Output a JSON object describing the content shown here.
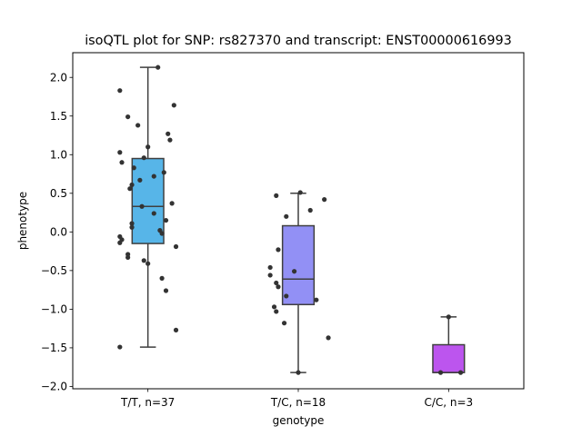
{
  "chart_data": {
    "type": "box",
    "title": "isoQTL plot for SNP: rs827370 and transcript: ENST00000616993",
    "xlabel": "genotype",
    "ylabel": "phenotype",
    "ylim": [
      -2.03,
      2.32
    ],
    "yticks": [
      2.0,
      1.5,
      1.0,
      0.5,
      0.0,
      -0.5,
      -1.0,
      -1.5,
      -2.0
    ],
    "ytick_labels": [
      "2.0",
      "1.5",
      "1.0",
      "0.5",
      "0.0",
      "−0.5",
      "−1.0",
      "−1.5",
      "−2.0"
    ],
    "categories": [
      "T/T, n=37",
      "T/C, n=18",
      "C/C, n=3"
    ],
    "colors": [
      "#57b5e8",
      "#9290f5",
      "#bc55ee"
    ],
    "boxes": [
      {
        "whisker_low": -1.49,
        "q1": -0.15,
        "median": 0.33,
        "q3": 0.95,
        "whisker_high": 2.13
      },
      {
        "whisker_low": -1.82,
        "q1": -0.94,
        "median": -0.61,
        "q3": 0.08,
        "whisker_high": 0.5
      },
      {
        "whisker_low": -1.82,
        "q1": -1.82,
        "median": -1.82,
        "q3": -1.46,
        "whisker_high": -1.1
      }
    ],
    "points": [
      [
        {
          "dx": 0.05,
          "y": 2.13
        },
        {
          "dx": -0.14,
          "y": 1.83
        },
        {
          "dx": 0.13,
          "y": 1.64
        },
        {
          "dx": -0.1,
          "y": 1.49
        },
        {
          "dx": -0.05,
          "y": 1.38
        },
        {
          "dx": 0.1,
          "y": 1.27
        },
        {
          "dx": 0.11,
          "y": 1.19
        },
        {
          "dx": 0.0,
          "y": 1.1
        },
        {
          "dx": -0.14,
          "y": 1.03
        },
        {
          "dx": -0.02,
          "y": 0.96
        },
        {
          "dx": -0.13,
          "y": 0.9
        },
        {
          "dx": -0.07,
          "y": 0.83
        },
        {
          "dx": 0.08,
          "y": 0.77
        },
        {
          "dx": 0.03,
          "y": 0.72
        },
        {
          "dx": -0.04,
          "y": 0.67
        },
        {
          "dx": -0.08,
          "y": 0.61
        },
        {
          "dx": -0.09,
          "y": 0.56
        },
        {
          "dx": 0.12,
          "y": 0.37
        },
        {
          "dx": -0.03,
          "y": 0.33
        },
        {
          "dx": 0.03,
          "y": 0.24
        },
        {
          "dx": 0.09,
          "y": 0.15
        },
        {
          "dx": -0.08,
          "y": 0.11
        },
        {
          "dx": -0.08,
          "y": 0.06
        },
        {
          "dx": 0.06,
          "y": 0.02
        },
        {
          "dx": 0.07,
          "y": -0.02
        },
        {
          "dx": -0.14,
          "y": -0.06
        },
        {
          "dx": -0.13,
          "y": -0.1
        },
        {
          "dx": -0.14,
          "y": -0.14
        },
        {
          "dx": 0.14,
          "y": -0.19
        },
        {
          "dx": -0.1,
          "y": -0.29
        },
        {
          "dx": -0.1,
          "y": -0.33
        },
        {
          "dx": -0.02,
          "y": -0.37
        },
        {
          "dx": 0.0,
          "y": -0.41
        },
        {
          "dx": 0.07,
          "y": -0.6
        },
        {
          "dx": 0.09,
          "y": -0.76
        },
        {
          "dx": 0.14,
          "y": -1.27
        },
        {
          "dx": -0.14,
          "y": -1.49
        }
      ],
      [
        {
          "dx": 0.01,
          "y": 0.51
        },
        {
          "dx": -0.11,
          "y": 0.47
        },
        {
          "dx": 0.13,
          "y": 0.42
        },
        {
          "dx": 0.06,
          "y": 0.28
        },
        {
          "dx": -0.06,
          "y": 0.2
        },
        {
          "dx": -0.1,
          "y": -0.23
        },
        {
          "dx": -0.14,
          "y": -0.46
        },
        {
          "dx": -0.02,
          "y": -0.51
        },
        {
          "dx": -0.14,
          "y": -0.56
        },
        {
          "dx": -0.11,
          "y": -0.66
        },
        {
          "dx": -0.1,
          "y": -0.71
        },
        {
          "dx": -0.06,
          "y": -0.83
        },
        {
          "dx": 0.09,
          "y": -0.88
        },
        {
          "dx": -0.12,
          "y": -0.97
        },
        {
          "dx": -0.11,
          "y": -1.03
        },
        {
          "dx": -0.07,
          "y": -1.18
        },
        {
          "dx": 0.15,
          "y": -1.37
        },
        {
          "dx": 0.0,
          "y": -1.82
        }
      ],
      [
        {
          "dx": 0.0,
          "y": -1.1
        },
        {
          "dx": -0.04,
          "y": -1.82
        },
        {
          "dx": 0.06,
          "y": -1.82
        }
      ]
    ]
  }
}
